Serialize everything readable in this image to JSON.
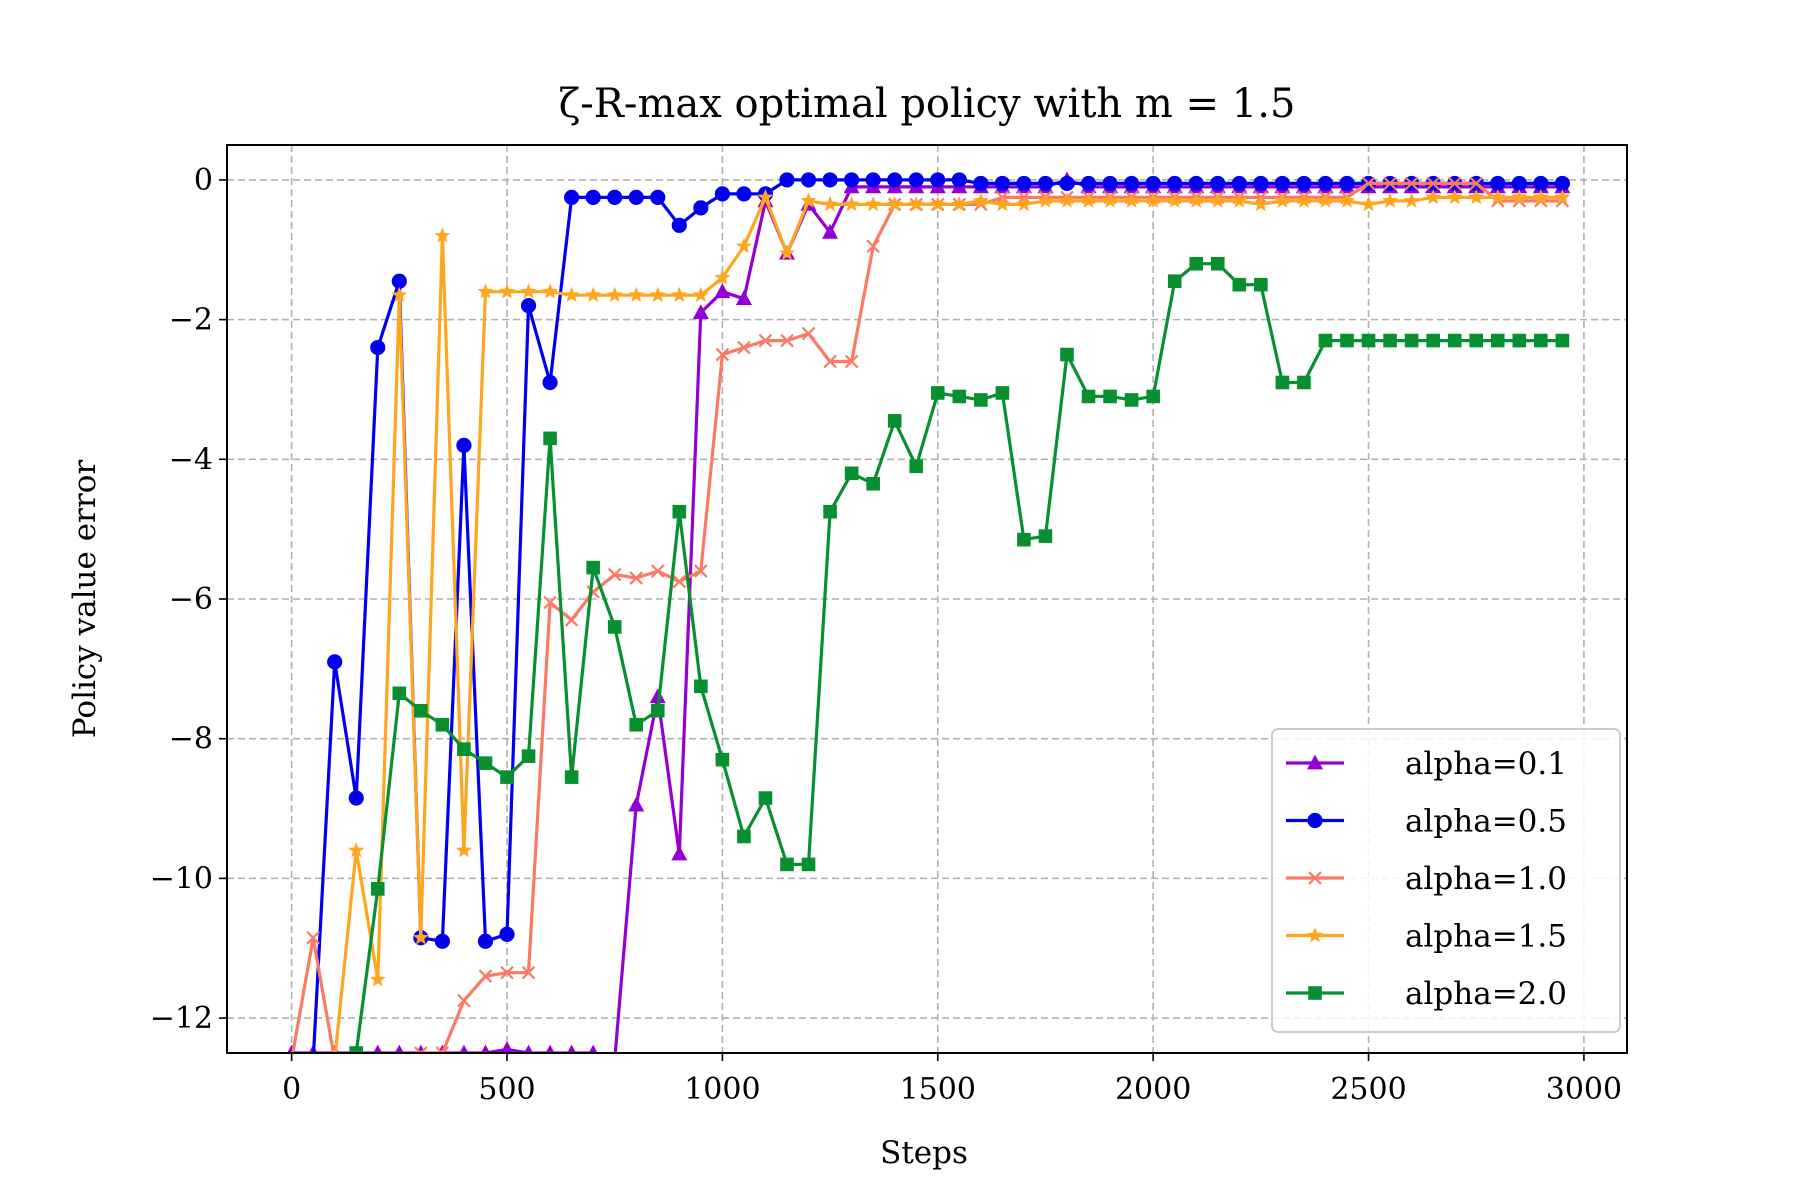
{
  "chart_data": {
    "type": "line",
    "title": "ζ-R-max optimal policy with m = 1.5",
    "xlabel": "Steps",
    "ylabel": "Policy value error",
    "xlim": [
      -150,
      3100
    ],
    "ylim": [
      -12.5,
      0.5
    ],
    "xticks": [
      0,
      500,
      1000,
      1500,
      2000,
      2500,
      3000
    ],
    "xtick_labels": [
      "0",
      "500",
      "1000",
      "1500",
      "2000",
      "2500",
      "3000"
    ],
    "yticks": [
      0,
      -2,
      -4,
      -6,
      -8,
      -10,
      -12
    ],
    "ytick_labels": [
      "0",
      "−2",
      "−4",
      "−6",
      "−8",
      "−10",
      "−12"
    ],
    "grid": true,
    "legend_position": "lower right",
    "x": [
      0,
      50,
      100,
      150,
      200,
      250,
      300,
      350,
      400,
      450,
      500,
      550,
      600,
      650,
      700,
      750,
      800,
      850,
      900,
      950,
      1000,
      1050,
      1100,
      1150,
      1200,
      1250,
      1300,
      1350,
      1400,
      1450,
      1500,
      1550,
      1600,
      1650,
      1700,
      1750,
      1800,
      1850,
      1900,
      1950,
      2000,
      2050,
      2100,
      2150,
      2200,
      2250,
      2300,
      2350,
      2400,
      2450,
      2500,
      2550,
      2600,
      2650,
      2700,
      2750,
      2800,
      2850,
      2900,
      2950
    ],
    "series": [
      {
        "name": "alpha=0.1",
        "color": "#9400d3",
        "marker": "triangle",
        "values": [
          -12.5,
          -12.5,
          -12.5,
          -12.5,
          -12.5,
          -12.5,
          -12.5,
          -12.5,
          -12.5,
          -12.5,
          -12.45,
          -12.5,
          -12.5,
          -12.5,
          -12.5,
          -12.6,
          -8.95,
          -7.4,
          -9.65,
          -1.9,
          -1.6,
          -1.7,
          -0.3,
          -1.05,
          -0.35,
          -0.75,
          -0.1,
          -0.1,
          -0.1,
          -0.1,
          -0.1,
          -0.1,
          -0.1,
          -0.1,
          -0.1,
          -0.1,
          0.0,
          -0.1,
          -0.1,
          -0.1,
          -0.1,
          -0.1,
          -0.1,
          -0.1,
          -0.1,
          -0.1,
          -0.1,
          -0.1,
          -0.1,
          -0.1,
          -0.1,
          -0.1,
          -0.1,
          -0.1,
          -0.1,
          -0.1,
          -0.1,
          -0.1,
          -0.1,
          -0.1
        ]
      },
      {
        "name": "alpha=0.5",
        "color": "#0000ee",
        "marker": "circle",
        "values": [
          -12.6,
          -12.6,
          -6.9,
          -8.85,
          -2.4,
          -1.45,
          -10.85,
          -10.9,
          -3.8,
          -10.9,
          -10.8,
          -1.8,
          -2.9,
          -0.25,
          -0.25,
          -0.25,
          -0.25,
          -0.25,
          -0.65,
          -0.4,
          -0.2,
          -0.2,
          -0.2,
          0.0,
          0.0,
          0.0,
          0.0,
          0.0,
          0.0,
          0.0,
          0.0,
          0.0,
          -0.05,
          -0.05,
          -0.05,
          -0.05,
          -0.05,
          -0.05,
          -0.05,
          -0.05,
          -0.05,
          -0.05,
          -0.05,
          -0.05,
          -0.05,
          -0.05,
          -0.05,
          -0.05,
          -0.05,
          -0.05,
          -0.05,
          -0.05,
          -0.05,
          -0.05,
          -0.05,
          -0.05,
          -0.05,
          -0.05,
          -0.05,
          -0.05
        ]
      },
      {
        "name": "alpha=1.0",
        "color": "#fa7a64",
        "marker": "x",
        "values": [
          -12.6,
          -10.85,
          -12.6,
          -12.6,
          -12.6,
          -12.6,
          -12.5,
          -12.5,
          -11.75,
          -11.4,
          -11.35,
          -11.35,
          -6.05,
          -6.3,
          -5.9,
          -5.65,
          -5.7,
          -5.6,
          -5.75,
          -5.6,
          -2.5,
          -2.4,
          -2.3,
          -2.3,
          -2.2,
          -2.6,
          -2.6,
          -0.95,
          -0.35,
          -0.35,
          -0.35,
          -0.35,
          -0.35,
          -0.25,
          -0.25,
          -0.25,
          -0.25,
          -0.25,
          -0.25,
          -0.25,
          -0.25,
          -0.25,
          -0.25,
          -0.25,
          -0.25,
          -0.25,
          -0.25,
          -0.25,
          -0.25,
          -0.25,
          -0.05,
          -0.05,
          -0.05,
          -0.05,
          -0.05,
          -0.05,
          -0.3,
          -0.3,
          -0.3,
          -0.3
        ]
      },
      {
        "name": "alpha=1.5",
        "color": "#ffa621",
        "marker": "star",
        "values": [
          -12.6,
          -12.6,
          -12.6,
          -9.6,
          -11.45,
          -1.65,
          -10.85,
          -0.8,
          -9.6,
          -1.6,
          -1.6,
          -1.6,
          -1.6,
          -1.65,
          -1.65,
          -1.65,
          -1.65,
          -1.65,
          -1.65,
          -1.65,
          -1.4,
          -0.95,
          -0.25,
          -1.05,
          -0.3,
          -0.35,
          -0.35,
          -0.35,
          -0.35,
          -0.35,
          -0.35,
          -0.35,
          -0.3,
          -0.35,
          -0.35,
          -0.3,
          -0.3,
          -0.3,
          -0.3,
          -0.3,
          -0.3,
          -0.3,
          -0.3,
          -0.3,
          -0.3,
          -0.35,
          -0.3,
          -0.3,
          -0.3,
          -0.3,
          -0.35,
          -0.3,
          -0.3,
          -0.25,
          -0.25,
          -0.25,
          -0.25,
          -0.25,
          -0.25,
          -0.25
        ]
      },
      {
        "name": "alpha=2.0",
        "color": "#078f30",
        "marker": "square",
        "values": [
          -12.6,
          -12.6,
          -12.6,
          -12.5,
          -10.15,
          -7.35,
          -7.6,
          -7.8,
          -8.15,
          -8.35,
          -8.55,
          -8.25,
          -3.7,
          -8.55,
          -5.55,
          -6.4,
          -7.8,
          -7.6,
          -4.75,
          -7.25,
          -8.3,
          -9.4,
          -8.85,
          -9.8,
          -9.8,
          -4.75,
          -4.2,
          -4.35,
          -3.45,
          -4.1,
          -3.05,
          -3.1,
          -3.15,
          -3.05,
          -5.15,
          -5.1,
          -2.5,
          -3.1,
          -3.1,
          -3.15,
          -3.1,
          -1.45,
          -1.2,
          -1.2,
          -1.5,
          -1.5,
          -2.9,
          -2.9,
          -2.3,
          -2.3,
          -2.3,
          -2.3,
          -2.3,
          -2.3,
          -2.3,
          -2.3,
          -2.3,
          -2.3,
          -2.3,
          -2.3
        ]
      }
    ]
  }
}
